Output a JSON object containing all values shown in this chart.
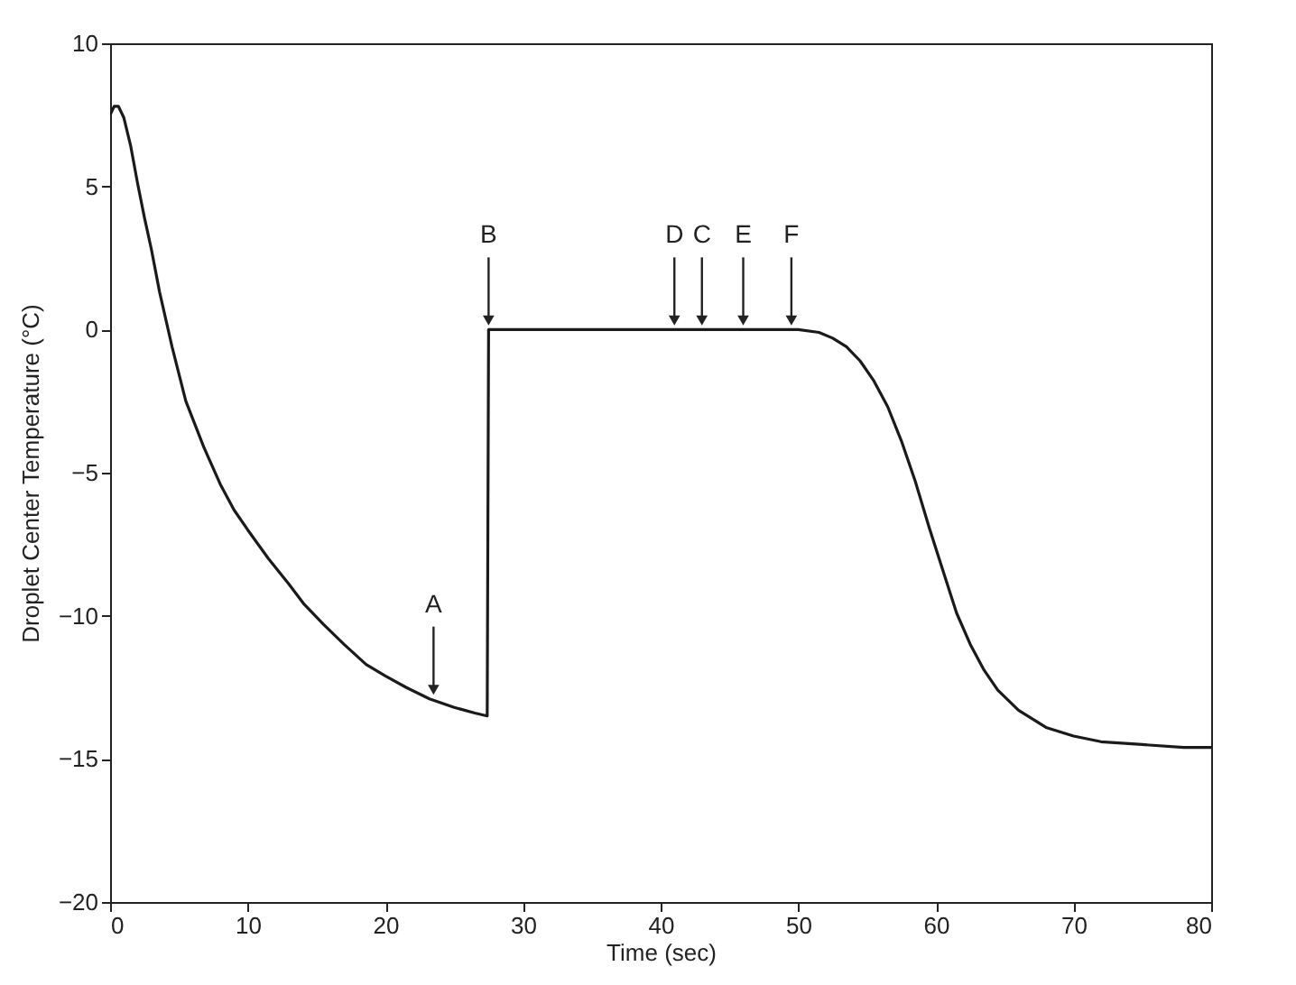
{
  "chart_data": {
    "type": "line",
    "xlabel": "Time (sec)",
    "ylabel": "Droplet Center Temperature (°C)",
    "x": [
      0,
      0.3,
      0.6,
      1,
      1.5,
      2,
      2.5,
      3,
      3.6,
      4.5,
      5.5,
      6.8,
      8,
      9,
      10,
      11.5,
      13,
      14.1,
      15.5,
      17,
      18.6,
      20,
      21.5,
      23.2,
      25,
      26.5,
      27.4,
      27.5,
      27.6,
      30,
      35,
      40,
      45,
      50,
      51.5,
      52.5,
      53.5,
      54.5,
      55.5,
      56.5,
      57.5,
      58.5,
      59.5,
      60.5,
      61.5,
      62.5,
      63.5,
      64.5,
      66,
      68,
      70,
      72,
      75,
      78,
      80
    ],
    "series": [
      {
        "color": "#1a1a1a",
        "values": [
          7.5,
          7.8,
          7.8,
          7.4,
          6.4,
          5.1,
          3.9,
          2.8,
          1.3,
          -0.6,
          -2.5,
          -4.1,
          -5.4,
          -6.3,
          -7,
          -8,
          -8.9,
          -9.6,
          -10.3,
          -11,
          -11.7,
          -12.1,
          -12.5,
          -12.9,
          -13.2,
          -13.4,
          -13.5,
          0,
          0,
          0,
          0,
          0,
          0,
          0,
          -0.1,
          -0.3,
          -0.6,
          -1.1,
          -1.8,
          -2.7,
          -3.9,
          -5.3,
          -6.9,
          -8.4,
          -9.9,
          -11,
          -11.9,
          -12.6,
          -13.3,
          -13.9,
          -14.2,
          -14.4,
          -14.5,
          -14.6,
          -14.6
        ]
      }
    ],
    "xlim": [
      0,
      80
    ],
    "xticks": [
      0,
      10,
      20,
      30,
      40,
      50,
      60,
      70,
      80
    ],
    "ylim": [
      -20,
      10
    ],
    "yticks": [
      -20,
      -15,
      -10,
      -5,
      0,
      5,
      10
    ],
    "annotations": [
      {
        "text": "A",
        "x": 23.5,
        "y": -12.9
      },
      {
        "text": "B",
        "x": 27.5,
        "y": 0
      },
      {
        "text": "D",
        "x": 41,
        "y": 0
      },
      {
        "text": "C",
        "x": 43,
        "y": 0
      },
      {
        "text": "E",
        "x": 46,
        "y": 0
      },
      {
        "text": "F",
        "x": 49.5,
        "y": 0
      }
    ],
    "grid": false
  }
}
